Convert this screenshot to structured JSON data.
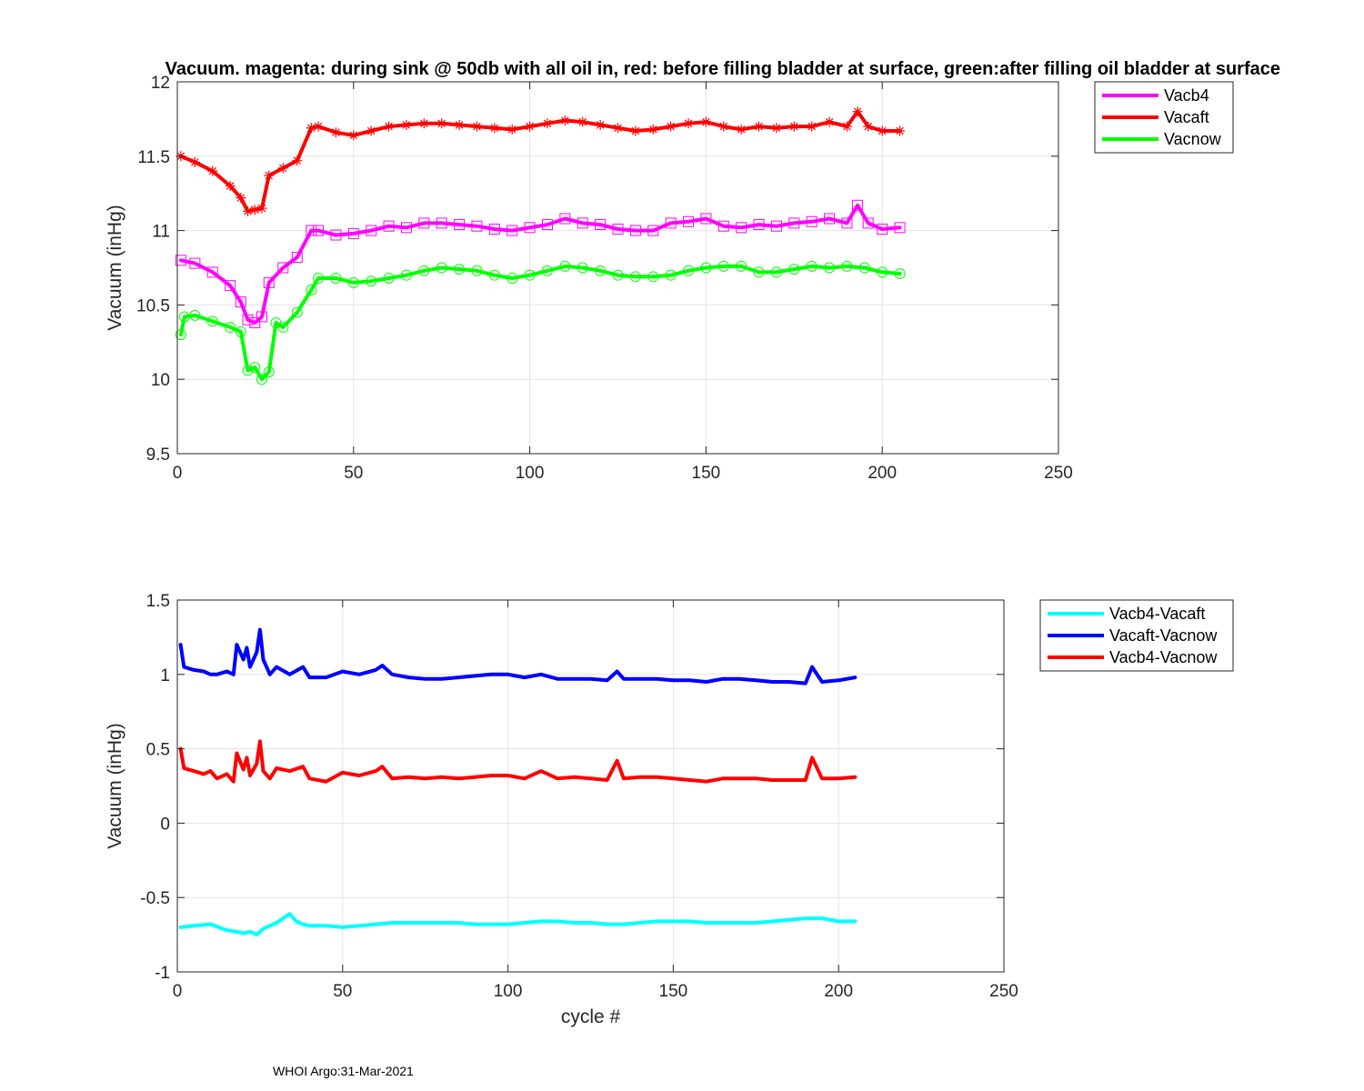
{
  "footer": "WHOI Argo:31-Mar-2021",
  "chart_data": [
    {
      "type": "line",
      "title": "Vacuum. magenta: during sink @ 50db with all oil in, red: before filling bladder at surface, green:after filling oil bladder at surface",
      "xlabel": "",
      "ylabel": "Vacuum (inHg)",
      "xlim": [
        0,
        250
      ],
      "ylim": [
        9.5,
        12
      ],
      "xticks": [
        0,
        50,
        100,
        150,
        200,
        250
      ],
      "yticks": [
        9.5,
        10,
        10.5,
        11,
        11.5,
        12
      ],
      "xtick_labels": [
        "0",
        "50",
        "100",
        "150",
        "200",
        "250"
      ],
      "ytick_labels": [
        "9.5",
        "10",
        "10.5",
        "11",
        "11.5",
        "12"
      ],
      "grid": true,
      "legend_position": "outside-top-right",
      "series": [
        {
          "name": "Vacb4",
          "color": "#ff00ff",
          "marker": "square",
          "x": [
            1,
            5,
            10,
            15,
            18,
            20,
            22,
            24,
            26,
            30,
            34,
            38,
            40,
            45,
            50,
            55,
            60,
            65,
            70,
            75,
            80,
            85,
            90,
            95,
            100,
            105,
            110,
            115,
            120,
            125,
            130,
            135,
            140,
            145,
            150,
            155,
            160,
            165,
            170,
            175,
            180,
            185,
            190,
            193,
            196,
            200,
            205
          ],
          "y": [
            10.8,
            10.78,
            10.72,
            10.63,
            10.52,
            10.4,
            10.38,
            10.42,
            10.65,
            10.75,
            10.82,
            11.0,
            11.0,
            10.97,
            10.98,
            11.0,
            11.03,
            11.02,
            11.05,
            11.05,
            11.04,
            11.03,
            11.01,
            11.0,
            11.02,
            11.04,
            11.08,
            11.05,
            11.04,
            11.01,
            11.0,
            11.0,
            11.05,
            11.06,
            11.08,
            11.03,
            11.02,
            11.04,
            11.03,
            11.05,
            11.06,
            11.08,
            11.05,
            11.17,
            11.05,
            11.01,
            11.02
          ]
        },
        {
          "name": "Vacaft",
          "color": "#ff0000",
          "marker": "asterisk",
          "x": [
            1,
            5,
            10,
            15,
            18,
            20,
            22,
            24,
            26,
            30,
            34,
            38,
            40,
            45,
            50,
            55,
            60,
            65,
            70,
            75,
            80,
            85,
            90,
            95,
            100,
            105,
            110,
            115,
            120,
            125,
            130,
            135,
            140,
            145,
            150,
            155,
            160,
            165,
            170,
            175,
            180,
            185,
            190,
            193,
            196,
            200,
            205
          ],
          "y": [
            11.5,
            11.46,
            11.4,
            11.3,
            11.22,
            11.13,
            11.14,
            11.15,
            11.37,
            11.42,
            11.47,
            11.69,
            11.7,
            11.66,
            11.64,
            11.67,
            11.7,
            11.71,
            11.72,
            11.72,
            11.71,
            11.7,
            11.69,
            11.68,
            11.7,
            11.72,
            11.74,
            11.73,
            11.71,
            11.69,
            11.67,
            11.68,
            11.7,
            11.72,
            11.73,
            11.7,
            11.68,
            11.7,
            11.69,
            11.7,
            11.7,
            11.73,
            11.7,
            11.8,
            11.7,
            11.67,
            11.67
          ]
        },
        {
          "name": "Vacnow",
          "color": "#00ff00",
          "marker": "circle",
          "x": [
            1,
            2,
            5,
            10,
            15,
            18,
            20,
            22,
            24,
            26,
            28,
            30,
            34,
            38,
            40,
            45,
            50,
            55,
            60,
            65,
            70,
            75,
            80,
            85,
            90,
            95,
            100,
            105,
            110,
            115,
            120,
            125,
            130,
            135,
            140,
            145,
            150,
            155,
            160,
            165,
            170,
            175,
            180,
            185,
            190,
            195,
            200,
            205
          ],
          "y": [
            10.3,
            10.42,
            10.43,
            10.39,
            10.35,
            10.32,
            10.06,
            10.08,
            10.0,
            10.05,
            10.38,
            10.35,
            10.45,
            10.6,
            10.68,
            10.68,
            10.65,
            10.66,
            10.68,
            10.7,
            10.73,
            10.75,
            10.74,
            10.73,
            10.7,
            10.68,
            10.7,
            10.73,
            10.76,
            10.75,
            10.73,
            10.7,
            10.69,
            10.69,
            10.7,
            10.73,
            10.75,
            10.76,
            10.76,
            10.72,
            10.72,
            10.74,
            10.76,
            10.75,
            10.76,
            10.75,
            10.72,
            10.71
          ]
        }
      ]
    },
    {
      "type": "line",
      "title": "",
      "xlabel": "cycle #",
      "ylabel": "Vacuum (inHg)",
      "xlim": [
        0,
        250
      ],
      "ylim": [
        -1,
        1.5
      ],
      "xticks": [
        0,
        50,
        100,
        150,
        200,
        250
      ],
      "yticks": [
        -1,
        -0.5,
        0,
        0.5,
        1,
        1.5
      ],
      "xtick_labels": [
        "0",
        "50",
        "100",
        "150",
        "200",
        "250"
      ],
      "ytick_labels": [
        "-1",
        "-0.5",
        "0",
        "0.5",
        "1",
        "1.5"
      ],
      "grid": true,
      "legend_position": "outside-top-right",
      "series": [
        {
          "name": "Vacb4-Vacaft",
          "color": "#00ffff",
          "x": [
            1,
            5,
            10,
            15,
            18,
            20,
            22,
            24,
            26,
            30,
            34,
            36,
            38,
            40,
            45,
            50,
            55,
            60,
            65,
            70,
            75,
            80,
            85,
            90,
            95,
            100,
            105,
            110,
            115,
            120,
            125,
            130,
            135,
            140,
            145,
            150,
            155,
            160,
            165,
            170,
            175,
            180,
            185,
            190,
            195,
            200,
            205
          ],
          "y": [
            -0.7,
            -0.69,
            -0.68,
            -0.72,
            -0.73,
            -0.74,
            -0.73,
            -0.75,
            -0.71,
            -0.67,
            -0.61,
            -0.66,
            -0.68,
            -0.69,
            -0.69,
            -0.7,
            -0.69,
            -0.68,
            -0.67,
            -0.67,
            -0.67,
            -0.67,
            -0.67,
            -0.68,
            -0.68,
            -0.68,
            -0.67,
            -0.66,
            -0.66,
            -0.67,
            -0.67,
            -0.68,
            -0.68,
            -0.67,
            -0.66,
            -0.66,
            -0.66,
            -0.67,
            -0.67,
            -0.67,
            -0.67,
            -0.66,
            -0.65,
            -0.64,
            -0.64,
            -0.66,
            -0.66
          ]
        },
        {
          "name": "Vacaft-Vacnow",
          "color": "#0000ff",
          "x": [
            1,
            2,
            5,
            8,
            10,
            12,
            15,
            17,
            18,
            20,
            21,
            22,
            24,
            25,
            26,
            28,
            30,
            34,
            38,
            40,
            45,
            50,
            55,
            60,
            62,
            65,
            70,
            75,
            80,
            85,
            90,
            95,
            100,
            105,
            110,
            115,
            120,
            125,
            130,
            133,
            135,
            140,
            145,
            150,
            155,
            160,
            165,
            170,
            175,
            180,
            185,
            190,
            192,
            195,
            200,
            205
          ],
          "y": [
            1.2,
            1.05,
            1.03,
            1.02,
            1.0,
            1.0,
            1.02,
            1.0,
            1.2,
            1.1,
            1.18,
            1.05,
            1.15,
            1.3,
            1.1,
            1.0,
            1.05,
            1.0,
            1.05,
            0.98,
            0.98,
            1.02,
            1.0,
            1.03,
            1.06,
            1.0,
            0.98,
            0.97,
            0.97,
            0.98,
            0.99,
            1.0,
            1.0,
            0.98,
            1.0,
            0.97,
            0.97,
            0.97,
            0.96,
            1.02,
            0.97,
            0.97,
            0.97,
            0.96,
            0.96,
            0.95,
            0.97,
            0.97,
            0.96,
            0.95,
            0.95,
            0.94,
            1.05,
            0.95,
            0.96,
            0.98
          ]
        },
        {
          "name": "Vacb4-Vacnow",
          "color": "#ff0000",
          "x": [
            1,
            2,
            5,
            8,
            10,
            12,
            15,
            17,
            18,
            20,
            21,
            22,
            24,
            25,
            26,
            28,
            30,
            34,
            38,
            40,
            45,
            50,
            55,
            60,
            62,
            65,
            70,
            75,
            80,
            85,
            90,
            95,
            100,
            105,
            110,
            115,
            120,
            125,
            130,
            133,
            135,
            140,
            145,
            150,
            155,
            160,
            165,
            170,
            175,
            180,
            185,
            190,
            192,
            195,
            200,
            205
          ],
          "y": [
            0.5,
            0.37,
            0.35,
            0.33,
            0.35,
            0.3,
            0.33,
            0.28,
            0.47,
            0.36,
            0.44,
            0.32,
            0.4,
            0.55,
            0.35,
            0.3,
            0.37,
            0.35,
            0.38,
            0.3,
            0.28,
            0.34,
            0.32,
            0.35,
            0.38,
            0.3,
            0.31,
            0.3,
            0.31,
            0.3,
            0.31,
            0.32,
            0.32,
            0.3,
            0.35,
            0.3,
            0.31,
            0.3,
            0.29,
            0.42,
            0.3,
            0.31,
            0.31,
            0.3,
            0.29,
            0.28,
            0.3,
            0.3,
            0.3,
            0.29,
            0.29,
            0.29,
            0.44,
            0.3,
            0.3,
            0.31
          ]
        }
      ]
    }
  ]
}
